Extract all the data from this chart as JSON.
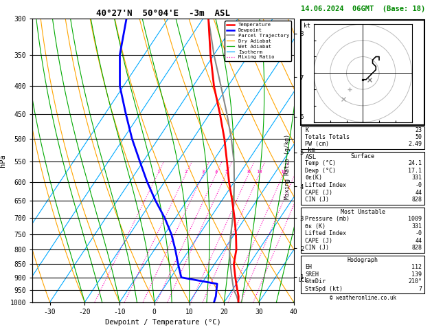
{
  "title_left": "40°27'N  50°04'E  -3m  ASL",
  "title_right": "14.06.2024  06GMT  (Base: 18)",
  "xlabel": "Dewpoint / Temperature (°C)",
  "ylabel_left": "hPa",
  "pressure_ticks": [
    300,
    350,
    400,
    450,
    500,
    550,
    600,
    650,
    700,
    750,
    800,
    850,
    900,
    950,
    1000
  ],
  "temp_ticks": [
    -30,
    -20,
    -10,
    0,
    10,
    20,
    30,
    40
  ],
  "t_min": -35,
  "t_max": 40,
  "p_min": 300,
  "p_max": 1000,
  "skew_factor": 0.72,
  "temperature_profile": {
    "pressure": [
      1000,
      975,
      950,
      925,
      900,
      850,
      800,
      750,
      700,
      650,
      600,
      550,
      500,
      450,
      400,
      350,
      300
    ],
    "temp": [
      24.1,
      23.0,
      21.5,
      20.0,
      18.5,
      15.5,
      13.5,
      10.5,
      7.0,
      3.0,
      -1.5,
      -6.0,
      -11.0,
      -17.0,
      -24.0,
      -31.0,
      -38.5
    ]
  },
  "dewpoint_profile": {
    "pressure": [
      1000,
      975,
      950,
      925,
      900,
      850,
      800,
      750,
      700,
      650,
      600,
      550,
      500,
      450,
      400,
      350,
      300
    ],
    "temp": [
      17.1,
      16.5,
      15.5,
      14.5,
      3.0,
      -0.5,
      -4.0,
      -8.0,
      -13.0,
      -19.0,
      -25.0,
      -31.0,
      -37.5,
      -44.0,
      -51.0,
      -57.0,
      -62.0
    ]
  },
  "parcel_profile": {
    "pressure": [
      1000,
      975,
      950,
      925,
      900,
      850,
      800,
      750,
      700,
      650,
      600,
      550,
      500,
      450,
      400,
      350,
      300
    ],
    "temp": [
      24.1,
      22.5,
      20.5,
      19.0,
      17.5,
      14.5,
      11.5,
      9.0,
      6.5,
      3.5,
      0.0,
      -4.0,
      -9.0,
      -15.0,
      -22.0,
      -30.0,
      -38.5
    ]
  },
  "mixing_ratio_lines": [
    1,
    2,
    3,
    4,
    5,
    8,
    10,
    16,
    20,
    25
  ],
  "km_labels": [
    1,
    2,
    3,
    4,
    5,
    6,
    7,
    8
  ],
  "km_pressures": [
    898,
    795,
    700,
    612,
    530,
    455,
    385,
    320
  ],
  "lcl_pressure": 910,
  "stats_top": [
    [
      "K",
      "23"
    ],
    [
      "Totals Totals",
      "50"
    ],
    [
      "PW (cm)",
      "2.49"
    ]
  ],
  "stats_surface": {
    "header": "Surface",
    "rows": [
      [
        "Temp (°C)",
        "24.1"
      ],
      [
        "Dewp (°C)",
        "17.1"
      ],
      [
        "θε(K)",
        "331"
      ],
      [
        "Lifted Index",
        "-0"
      ],
      [
        "CAPE (J)",
        "44"
      ],
      [
        "CIN (J)",
        "828"
      ]
    ]
  },
  "stats_mu": {
    "header": "Most Unstable",
    "rows": [
      [
        "Pressure (mb)",
        "1009"
      ],
      [
        "θε (K)",
        "331"
      ],
      [
        "Lifted Index",
        "-0"
      ],
      [
        "CAPE (J)",
        "44"
      ],
      [
        "CIN (J)",
        "828"
      ]
    ]
  },
  "stats_hodo": {
    "header": "Hodograph",
    "rows": [
      [
        "EH",
        "112"
      ],
      [
        "SREH",
        "139"
      ],
      [
        "StmDir",
        "210°"
      ],
      [
        "StmSpd (kt)",
        "7"
      ]
    ]
  },
  "copyright": "© weatheronline.co.uk",
  "colors": {
    "temperature": "#FF0000",
    "dewpoint": "#0000FF",
    "parcel": "#888888",
    "dry_adiabat": "#FFA500",
    "wet_adiabat": "#00AA00",
    "isotherm": "#00AAFF",
    "mixing_ratio": "#FF00BB",
    "km_marker": "#FFD700",
    "title_right": "#008800"
  }
}
